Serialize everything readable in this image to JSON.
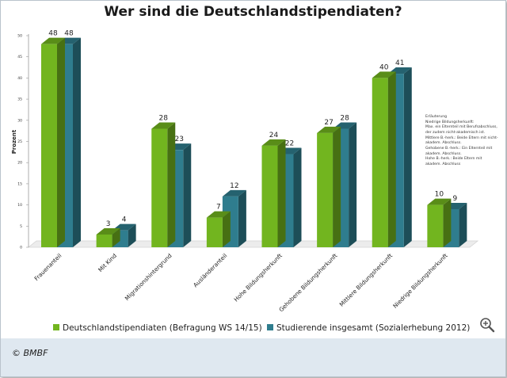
{
  "title": "Wer sind die Deutschlandstipendiaten?",
  "credit": "© BMBF",
  "note": {
    "heading": "Erläuterung",
    "lines": [
      "Niedrige Bildungsherkunft:",
      "Max. ein Elternteil mit Berufsabschluss, der zudem nicht-akademisch ist.",
      "Mittlere B.-herk.: Beide Eltern mit nicht-akadem. Abschluss.",
      "Gehobene B.-herk.: Ein Elternteil mit akadem. Abschluss.",
      "Hohe B.-herk.: Beide Eltern mit akadem. Abschluss"
    ]
  },
  "icons": {
    "zoom": "zoom-in-icon"
  },
  "colors": {
    "series1": "#72b51f",
    "series2": "#2f7d8e"
  },
  "chart_data": {
    "type": "bar",
    "title": "Wer sind die Deutschlandstipendiaten?",
    "ylabel": "Prozent",
    "xlabel": "",
    "ylim": [
      0,
      50
    ],
    "yticks": [
      0,
      5,
      10,
      15,
      20,
      25,
      30,
      35,
      40,
      45,
      50
    ],
    "grid": false,
    "legend_position": "bottom",
    "categories": [
      "Frauenanteil",
      "Mit Kind",
      "Migrationshintergrund",
      "Ausländeranteil",
      "Hohe Bildungsherkunft",
      "Gehobene Bildungsherkunft",
      "Mittlere Bildungsherkunft",
      "Niedrige Bildungsherkunft"
    ],
    "series": [
      {
        "name": "Deutschlandstipendiaten (Befragung WS 14/15)",
        "values": [
          48,
          3,
          28,
          7,
          24,
          27,
          40,
          10
        ]
      },
      {
        "name": "Studierende insgesamt (Sozialerhebung 2012)",
        "values": [
          48,
          4,
          23,
          12,
          22,
          28,
          41,
          9
        ]
      }
    ]
  }
}
